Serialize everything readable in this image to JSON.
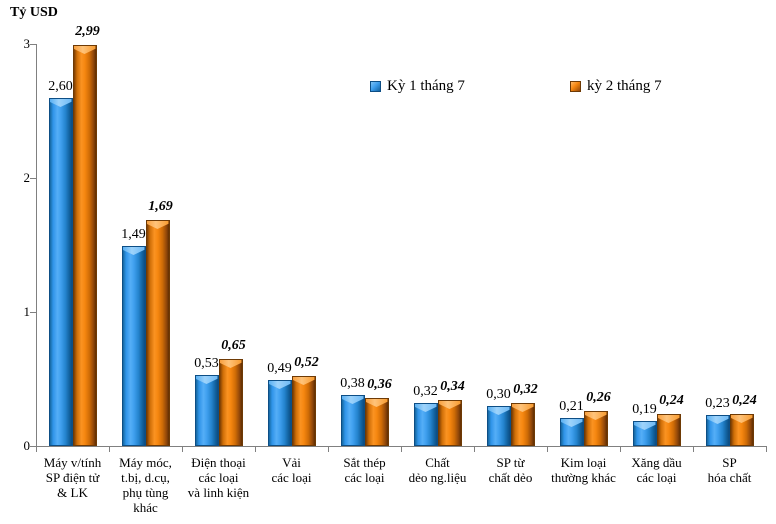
{
  "unit_label": "Tỷ USD",
  "legend": {
    "items": [
      {
        "label": "Kỳ 1 tháng 7",
        "color": "#2E94E4"
      },
      {
        "label": "kỳ 2 tháng 7",
        "color": "#E87F12"
      }
    ]
  },
  "chart_data": {
    "type": "bar",
    "title": "",
    "xlabel": "",
    "ylabel": "Tỷ USD",
    "ylim": [
      0,
      3
    ],
    "yticks": [
      0,
      1,
      2,
      3
    ],
    "grid": false,
    "legend_position": "top-inside",
    "axis_color": "#808080",
    "categories": [
      "Máy v/tính SP điện tử & LK",
      "Máy móc, t.bị, d.cụ, phụ tùng khác",
      "Điện thoại các loại và linh kiện",
      "Vải các loại",
      "Sắt thép các loại",
      "Chất dẻo ng.liệu",
      "SP từ chất dẻo",
      "Kim loại thường khác",
      "Xăng dầu các loại",
      "SP hóa chất"
    ],
    "category_lines": [
      [
        "Máy v/tính",
        "SP điện tử",
        "& LK"
      ],
      [
        "Máy móc,",
        "t.bị, d.cụ,",
        "phụ tùng",
        "khác"
      ],
      [
        "Điện thoại",
        "các loại",
        "và linh kiện"
      ],
      [
        "Vải",
        "các loại"
      ],
      [
        "Sắt thép",
        "các loại"
      ],
      [
        "Chất",
        "dẻo ng.liệu"
      ],
      [
        "SP từ",
        "chất dẻo"
      ],
      [
        "Kim loại",
        "thường khác"
      ],
      [
        "Xăng dầu",
        "các loại"
      ],
      [
        "SP",
        "hóa chất"
      ]
    ],
    "series": [
      {
        "name": "Kỳ 1 tháng 7",
        "color": "#2E94E4",
        "values": [
          2.6,
          1.49,
          0.53,
          0.49,
          0.38,
          0.32,
          0.3,
          0.21,
          0.19,
          0.23
        ],
        "labels": [
          "2,60",
          "1,49",
          "0,53",
          "0,49",
          "0,38",
          "0,32",
          "0,30",
          "0,21",
          "0,19",
          "0,23"
        ]
      },
      {
        "name": "kỳ 2 tháng 7",
        "color": "#E87F12",
        "values": [
          2.99,
          1.69,
          0.65,
          0.52,
          0.36,
          0.34,
          0.32,
          0.26,
          0.24,
          0.24
        ],
        "labels": [
          "2,99",
          "1,69",
          "0,65",
          "0,52",
          "0,36",
          "0,34",
          "0,32",
          "0,26",
          "0,24",
          "0,24"
        ]
      }
    ]
  }
}
